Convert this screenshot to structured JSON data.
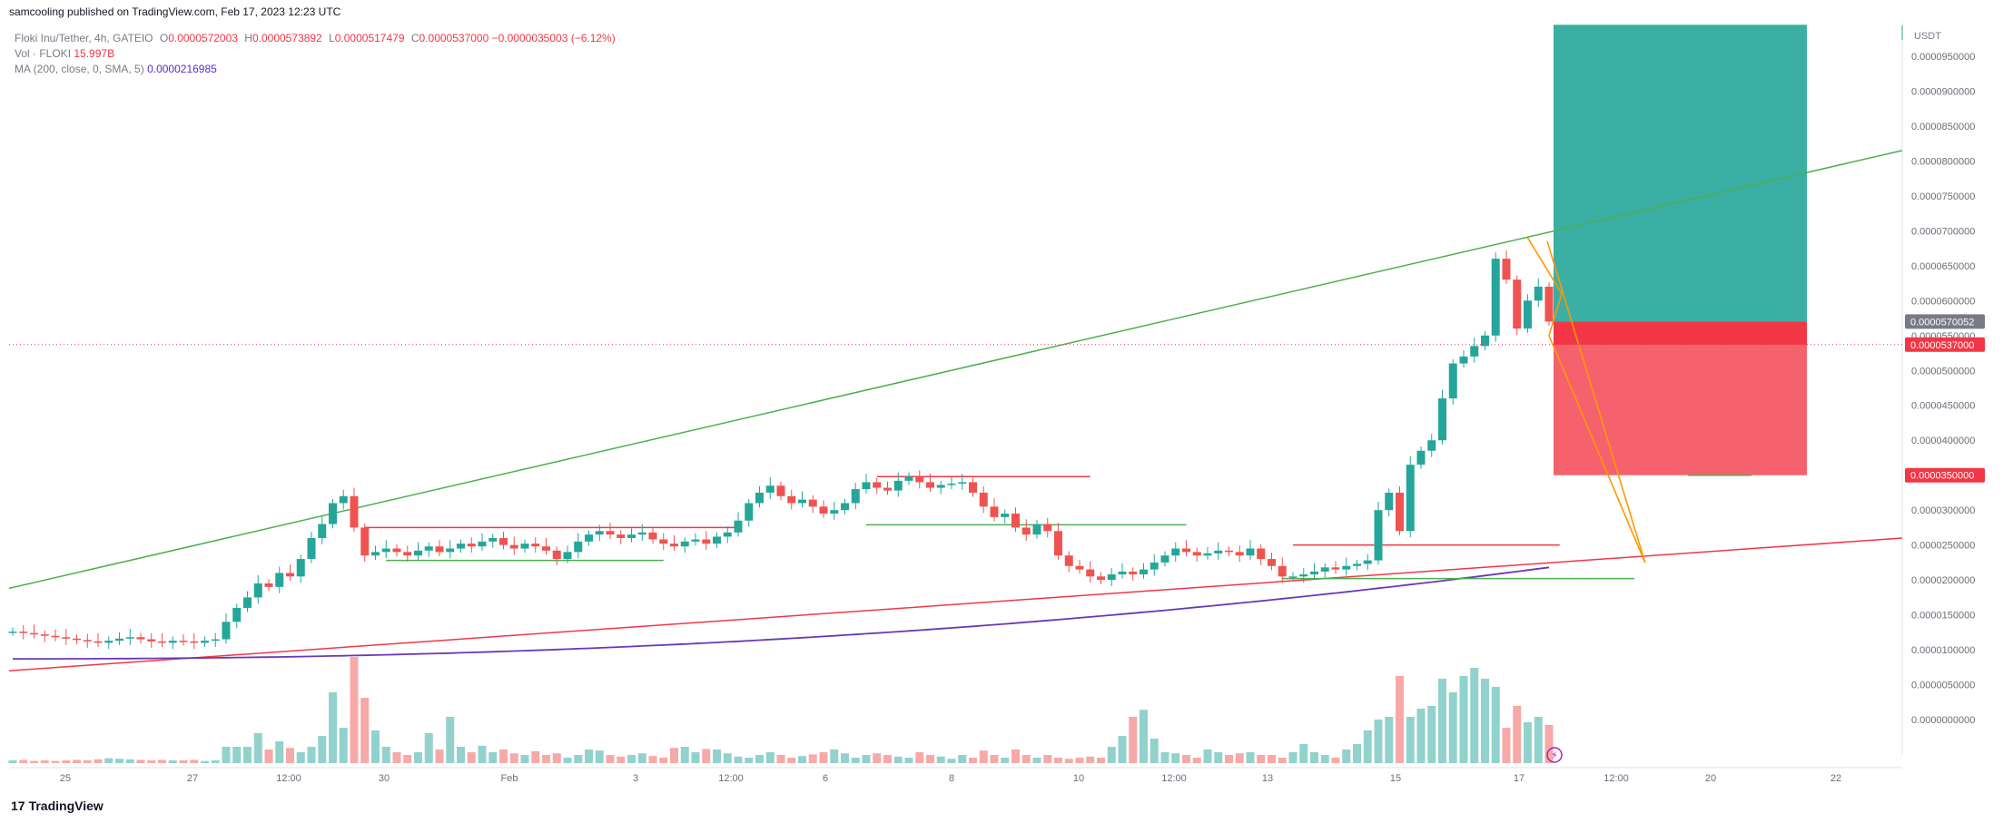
{
  "header": {
    "published": "samcooling published on TradingView.com, Feb 17, 2023 12:23 UTC"
  },
  "legend": {
    "symbol": "Floki Inu/Tether, 4h, GATEIO",
    "o_label": "O",
    "o_value": "0.0000572003",
    "h_label": "H",
    "h_value": "0.0000573892",
    "l_label": "L",
    "l_value": "0.0000517479",
    "c_label": "C",
    "c_value": "0.0000537000",
    "change": "−0.0000035003 (−6.12%)",
    "vol_label": "Vol · FLOKI",
    "vol_value": "15.997B",
    "ma_label": "MA (200, close, 0, SMA, 5)",
    "ma_value": "0.0000216985"
  },
  "footer": {
    "brand": "TradingView",
    "logo": "17"
  },
  "colors": {
    "up": "#26a69a",
    "down": "#ef5350",
    "up_vol": "#92d2cc",
    "down_vol": "#f7a9a7",
    "profit_zone": "#26a69a",
    "loss_zone": "#f23645",
    "trend_green": "#4caf50",
    "trend_red": "#f23645",
    "ma": "#673ab7",
    "wedge": "#ff9800"
  },
  "chart_data": {
    "type": "candlestick",
    "symbol": "Floki Inu/Tether",
    "timeframe": "4h",
    "exchange": "GATEIO",
    "currency": "USDT",
    "y_axis_ticks": [
      "0.0000950000",
      "0.0000900000",
      "0.0000850000",
      "0.0000800000",
      "0.0000750000",
      "0.0000700000",
      "0.0000650000",
      "0.0000600000",
      "0.0000550000",
      "0.0000500000",
      "0.0000450000",
      "0.0000400000",
      "0.0000350000",
      "0.0000300000",
      "0.0000250000",
      "0.0000200000",
      "0.0000150000",
      "0.0000100000",
      "0.0000050000",
      "0.0000000000"
    ],
    "y_ticks_num": [
      9.5e-05,
      9e-05,
      8.5e-05,
      8e-05,
      7.5e-05,
      7e-05,
      6.5e-05,
      6e-05,
      5.5e-05,
      5e-05,
      4.5e-05,
      4e-05,
      3.5e-05,
      3e-05,
      2.5e-05,
      2e-05,
      1.5e-05,
      1e-05,
      5e-06,
      0
    ],
    "x_axis_ticks": [
      "25",
      "27",
      "12:00",
      "30",
      "Feb",
      "3",
      "12:00",
      "6",
      "8",
      "10",
      "12:00",
      "13",
      "15",
      "17",
      "12:00",
      "20",
      "22"
    ],
    "price_labels": [
      {
        "value": "0.0000570052",
        "num": 5.70052e-05,
        "color": "#787b86"
      },
      {
        "value": "0.0000537000",
        "num": 5.37e-05,
        "color": "#f23645"
      },
      {
        "value": "0.0000350000",
        "num": 3.5e-05,
        "color": "#f23645"
      }
    ],
    "candles_close": [
      12.6,
      12.4,
      12.2,
      12.0,
      11.8,
      11.6,
      11.4,
      11.2,
      11.0,
      11.3,
      11.6,
      11.8,
      11.5,
      11.2,
      11.0,
      11.3,
      11.2,
      11.0,
      11.3,
      11.5,
      14.0,
      16.0,
      17.5,
      19.5,
      19.0,
      21.0,
      20.5,
      23.0,
      26.0,
      28.0,
      31.0,
      32.0,
      27.5,
      23.5,
      24.0,
      24.5,
      24.0,
      23.5,
      24.2,
      24.8,
      24.0,
      24.5,
      25.2,
      24.8,
      25.5,
      26.0,
      25.0,
      24.5,
      25.2,
      24.8,
      24.2,
      23.0,
      24.0,
      25.5,
      26.5,
      27.0,
      26.5,
      26.0,
      26.5,
      26.8,
      25.8,
      25.2,
      24.8,
      25.5,
      25.8,
      25.2,
      26.2,
      26.8,
      28.5,
      31.0,
      32.5,
      33.5,
      32.0,
      31.0,
      31.5,
      30.5,
      29.5,
      30.0,
      31.0,
      33.0,
      34.0,
      33.2,
      32.8,
      34.2,
      34.8,
      34.0,
      33.2,
      33.6,
      33.8,
      34.0,
      32.5,
      30.5,
      29.0,
      29.5,
      27.5,
      26.5,
      28.0,
      27.0,
      23.5,
      22.0,
      21.5,
      20.5,
      20.0,
      20.8,
      21.2,
      20.8,
      21.5,
      22.5,
      23.5,
      24.5,
      24.0,
      23.5,
      23.8,
      24.2,
      24.0,
      23.5,
      24.5,
      23.0,
      22.0,
      20.5,
      20.5,
      20.8,
      21.2,
      21.8,
      21.5,
      22.0,
      22.3,
      22.8,
      30.0,
      32.5,
      27.0,
      36.5,
      38.5,
      40.0,
      46.0,
      51.0,
      52.0,
      53.5,
      55.0,
      66.0,
      63.0,
      56.0,
      60.0,
      62.0,
      57.0
    ],
    "ma200_start": 8.7,
    "ma200_end": 21.8,
    "trendline_green": {
      "from": 18.8,
      "to": 81.5
    },
    "trendline_red": {
      "from": 7.0,
      "to": 26.0
    },
    "position": {
      "entry": 5.70052e-05,
      "stop": 3.5e-05,
      "target": 9.95e-05
    },
    "volume": [
      0.5,
      0.6,
      0.4,
      0.5,
      0.4,
      0.5,
      0.6,
      0.5,
      0.7,
      0.9,
      0.8,
      0.7,
      0.6,
      0.5,
      0.6,
      0.5,
      0.5,
      0.6,
      0.4,
      0.5,
      3.0,
      3.0,
      3.0,
      5.5,
      2.5,
      4.0,
      2.8,
      2.0,
      3.0,
      5.0,
      13.0,
      6.5,
      19.5,
      12.0,
      6.0,
      3.0,
      2.0,
      1.5,
      2.0,
      5.5,
      2.5,
      8.5,
      3.0,
      2.0,
      3.2,
      2.0,
      2.5,
      1.8,
      1.5,
      2.2,
      1.5,
      1.8,
      1.0,
      1.5,
      2.5,
      2.3,
      1.5,
      1.2,
      1.5,
      1.8,
      1.3,
      1.0,
      2.8,
      3.0,
      2.0,
      2.6,
      2.5,
      1.8,
      1.2,
      1.0,
      1.5,
      2.0,
      1.5,
      1.0,
      1.3,
      1.6,
      2.0,
      2.5,
      1.8,
      1.0,
      1.5,
      1.8,
      1.5,
      1.2,
      1.0,
      2.0,
      1.5,
      1.2,
      0.8,
      1.5,
      1.0,
      2.3,
      1.5,
      1.0,
      2.5,
      1.5,
      1.0,
      1.5,
      1.0,
      0.8,
      1.0,
      1.2,
      1.0,
      3.0,
      5.0,
      8.5,
      9.8,
      4.5,
      2.0,
      1.8,
      1.5,
      1.0,
      2.5,
      2.0,
      1.5,
      1.8,
      2.0,
      1.5,
      1.5,
      1.0,
      2.0,
      3.5,
      2.0,
      1.5,
      1.0,
      2.5,
      3.5,
      6.0,
      8.0,
      8.5,
      16.0,
      8.5,
      10.0,
      10.5,
      15.5,
      13.0,
      16.0,
      17.5,
      15.5,
      14.0,
      6.5,
      10.5,
      7.5,
      8.5,
      7.0
    ],
    "volume_axis": {
      "max": 20,
      "unit": "B"
    }
  }
}
